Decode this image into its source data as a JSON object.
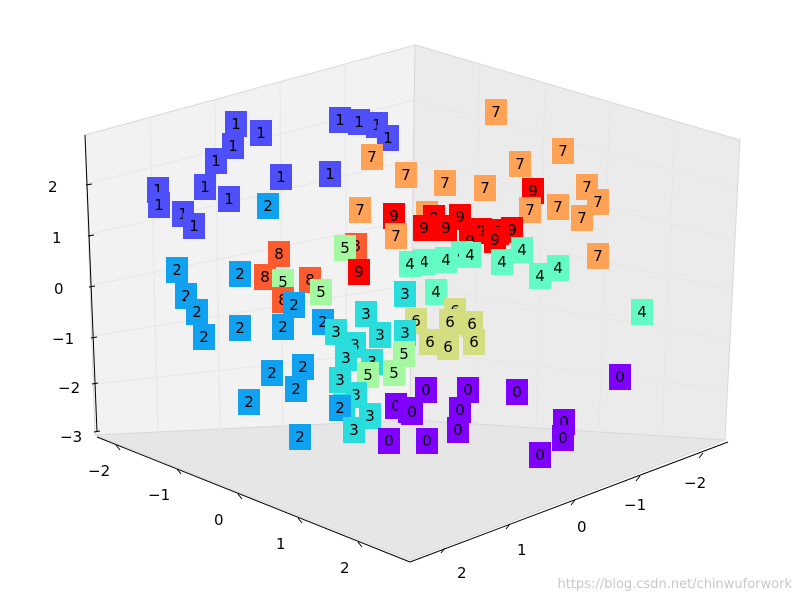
{
  "chart_data": {
    "type": "scatter",
    "title": "",
    "xlabel": "",
    "ylabel": "",
    "zlabel": "",
    "xlim": [
      -2.5,
      2.5
    ],
    "ylim": [
      -2.5,
      2.5
    ],
    "zlim": [
      -3,
      3
    ],
    "x_ticks": [
      "−2",
      "−1",
      "0",
      "1",
      "2"
    ],
    "y_ticks": [
      "−2",
      "−1",
      "0",
      "1",
      "2"
    ],
    "z_ticks": [
      "−3",
      "−2",
      "−1",
      "0",
      "1",
      "2"
    ],
    "grid": true,
    "series": [
      {
        "label": "0",
        "color": "#8000ff",
        "points": [
          [
            620,
            377
          ],
          [
            517,
            392
          ],
          [
            426,
            390
          ],
          [
            468,
            390
          ],
          [
            460,
            410
          ],
          [
            412,
            412
          ],
          [
            396,
            406
          ],
          [
            458,
            430
          ],
          [
            564,
            422
          ],
          [
            563,
            438
          ],
          [
            540,
            455
          ],
          [
            389,
            441
          ],
          [
            427,
            441
          ],
          [
            409,
            410
          ]
        ]
      },
      {
        "label": "1",
        "color": "#4f4ff9",
        "points": [
          [
            236,
            124
          ],
          [
            261,
            133
          ],
          [
            233,
            146
          ],
          [
            340,
            120
          ],
          [
            359,
            122
          ],
          [
            377,
            125
          ],
          [
            388,
            138
          ],
          [
            216,
            161
          ],
          [
            281,
            177
          ],
          [
            330,
            174
          ],
          [
            158,
            190
          ],
          [
            205,
            187
          ],
          [
            229,
            199
          ],
          [
            159,
            205
          ],
          [
            183,
            214
          ],
          [
            194,
            226
          ]
        ]
      },
      {
        "label": "2",
        "color": "#10a2f0",
        "points": [
          [
            268,
            206
          ],
          [
            177,
            270
          ],
          [
            240,
            274
          ],
          [
            186,
            296
          ],
          [
            197,
            312
          ],
          [
            204,
            337
          ],
          [
            240,
            328
          ],
          [
            283,
            327
          ],
          [
            294,
            305
          ],
          [
            303,
            367
          ],
          [
            272,
            373
          ],
          [
            296,
            389
          ],
          [
            249,
            402
          ],
          [
            340,
            408
          ],
          [
            300,
            437
          ],
          [
            323,
            322
          ]
        ]
      },
      {
        "label": "3",
        "color": "#2adddd",
        "points": [
          [
            336,
            332
          ],
          [
            366,
            314
          ],
          [
            380,
            335
          ],
          [
            355,
            345
          ],
          [
            372,
            362
          ],
          [
            346,
            358
          ],
          [
            340,
            380
          ],
          [
            356,
            395
          ],
          [
            370,
            416
          ],
          [
            344,
            407
          ],
          [
            354,
            430
          ],
          [
            405,
            294
          ],
          [
            405,
            333
          ]
        ]
      },
      {
        "label": "4",
        "color": "#62fbc4",
        "points": [
          [
            410,
            264
          ],
          [
            424,
            262
          ],
          [
            446,
            260
          ],
          [
            470,
            255
          ],
          [
            502,
            262
          ],
          [
            522,
            250
          ],
          [
            540,
            276
          ],
          [
            558,
            268
          ],
          [
            642,
            312
          ],
          [
            436,
            292
          ],
          [
            462,
            254
          ]
        ]
      },
      {
        "label": "5",
        "color": "#a4f89f",
        "points": [
          [
            283,
            282
          ],
          [
            321,
            292
          ],
          [
            345,
            248
          ],
          [
            404,
            354
          ],
          [
            394,
            373
          ],
          [
            368,
            375
          ]
        ]
      },
      {
        "label": "6",
        "color": "#d4dd80",
        "points": [
          [
            416,
            321
          ],
          [
            450,
            322
          ],
          [
            472,
            324
          ],
          [
            430,
            342
          ],
          [
            448,
            347
          ],
          [
            474,
            342
          ],
          [
            455,
            311
          ]
        ]
      },
      {
        "label": "7",
        "color": "#ffa256",
        "points": [
          [
            496,
            112
          ],
          [
            563,
            151
          ],
          [
            372,
            157
          ],
          [
            520,
            164
          ],
          [
            406,
            175
          ],
          [
            445,
            183
          ],
          [
            485,
            188
          ],
          [
            587,
            187
          ],
          [
            360,
            210
          ],
          [
            396,
            236
          ],
          [
            427,
            214
          ],
          [
            558,
            207
          ],
          [
            582,
            218
          ],
          [
            598,
            202
          ],
          [
            598,
            256
          ],
          [
            530,
            210
          ]
        ]
      },
      {
        "label": "8",
        "color": "#ff5b2e",
        "points": [
          [
            279,
            254
          ],
          [
            265,
            277
          ],
          [
            283,
            300
          ],
          [
            356,
            246
          ],
          [
            310,
            280
          ]
        ]
      },
      {
        "label": "9",
        "color": "#ff0000",
        "points": [
          [
            359,
            272
          ],
          [
            394,
            216
          ],
          [
            424,
            228
          ],
          [
            446,
            228
          ],
          [
            460,
            217
          ],
          [
            481,
            231
          ],
          [
            512,
            230
          ],
          [
            533,
            191
          ],
          [
            470,
            241
          ],
          [
            498,
            232
          ],
          [
            434,
            218
          ],
          [
            495,
            240
          ]
        ]
      }
    ]
  },
  "watermark": "https://blog.csdn.net/chinwuforwork"
}
